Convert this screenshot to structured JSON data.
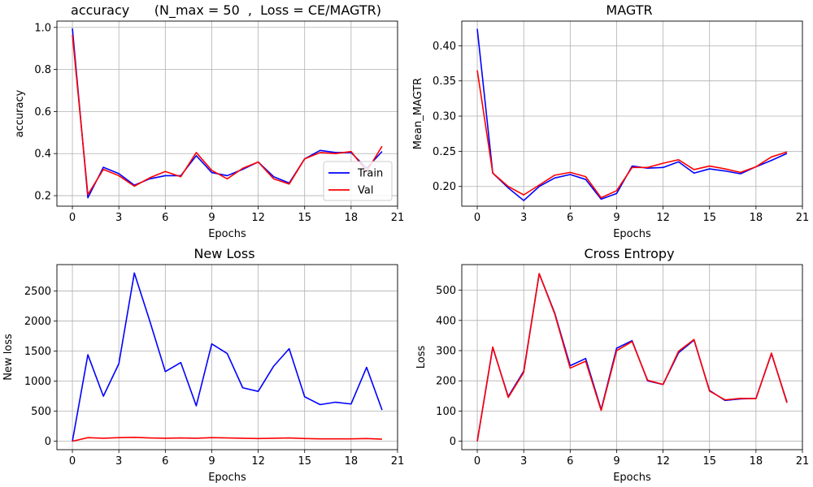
{
  "colors": {
    "train": "#0000ff",
    "val": "#ff0000",
    "grid": "#b0b0b0",
    "axis": "#000000"
  },
  "chart_data": [
    {
      "id": "accuracy",
      "type": "line",
      "title": "accuracy      (N_max = 50  ,  Loss = CE/MAGTR)",
      "xlabel": "Epochs",
      "ylabel": "accuracy",
      "xlim": [
        -1,
        21
      ],
      "ylim": [
        0.15,
        1.03
      ],
      "xticks": [
        "0",
        "3",
        "6",
        "9",
        "12",
        "15",
        "18",
        "21"
      ],
      "yticks": [
        "0.2",
        "0.4",
        "0.6",
        "0.8",
        "1.0"
      ],
      "grid": true,
      "legend": "lower-right",
      "x": [
        0,
        1,
        2,
        3,
        4,
        5,
        6,
        7,
        8,
        9,
        10,
        11,
        12,
        13,
        14,
        15,
        16,
        17,
        18,
        19,
        20
      ],
      "series": [
        {
          "name": "Train",
          "values": [
            0.995,
            0.19,
            0.335,
            0.305,
            0.25,
            0.28,
            0.295,
            0.295,
            0.39,
            0.31,
            0.295,
            0.325,
            0.36,
            0.29,
            0.26,
            0.375,
            0.415,
            0.405,
            0.405,
            0.33,
            0.41
          ]
        },
        {
          "name": "Val",
          "values": [
            0.965,
            0.205,
            0.325,
            0.295,
            0.245,
            0.285,
            0.315,
            0.29,
            0.405,
            0.32,
            0.28,
            0.33,
            0.36,
            0.28,
            0.255,
            0.375,
            0.405,
            0.4,
            0.41,
            0.315,
            0.435
          ]
        }
      ]
    },
    {
      "id": "magtr",
      "type": "line",
      "title": "MAGTR",
      "xlabel": "Epochs",
      "ylabel": "Mean_MAGTR",
      "xlim": [
        -1,
        21
      ],
      "ylim": [
        0.172,
        0.435
      ],
      "xticks": [
        "0",
        "3",
        "6",
        "9",
        "12",
        "15",
        "18",
        "21"
      ],
      "yticks": [
        "0.20",
        "0.25",
        "0.30",
        "0.35",
        "0.40"
      ],
      "grid": true,
      "legend": "none",
      "x": [
        0,
        1,
        2,
        3,
        4,
        5,
        6,
        7,
        8,
        9,
        10,
        11,
        12,
        13,
        14,
        15,
        16,
        17,
        18,
        19,
        20
      ],
      "series": [
        {
          "name": "Train",
          "values": [
            0.424,
            0.219,
            0.198,
            0.18,
            0.2,
            0.212,
            0.217,
            0.21,
            0.182,
            0.19,
            0.229,
            0.226,
            0.227,
            0.235,
            0.219,
            0.225,
            0.222,
            0.218,
            0.228,
            0.237,
            0.247
          ]
        },
        {
          "name": "Val",
          "values": [
            0.365,
            0.219,
            0.2,
            0.188,
            0.202,
            0.216,
            0.22,
            0.214,
            0.184,
            0.194,
            0.227,
            0.227,
            0.233,
            0.238,
            0.224,
            0.229,
            0.225,
            0.22,
            0.228,
            0.242,
            0.249
          ]
        }
      ]
    },
    {
      "id": "newloss",
      "type": "line",
      "title": "New Loss",
      "xlabel": "Epochs",
      "ylabel": "New loss",
      "xlim": [
        -1,
        21
      ],
      "ylim": [
        -140,
        2940
      ],
      "xticks": [
        "0",
        "3",
        "6",
        "9",
        "12",
        "15",
        "18",
        "21"
      ],
      "yticks": [
        "0",
        "500",
        "1000",
        "1500",
        "2000",
        "2500"
      ],
      "grid": true,
      "legend": "none",
      "x": [
        0,
        1,
        2,
        3,
        4,
        5,
        6,
        7,
        8,
        9,
        10,
        11,
        12,
        13,
        14,
        15,
        16,
        17,
        18,
        19,
        20
      ],
      "series": [
        {
          "name": "Train",
          "values": [
            0,
            1440,
            750,
            1290,
            2800,
            2000,
            1160,
            1310,
            590,
            1620,
            1460,
            890,
            830,
            1250,
            1540,
            740,
            610,
            650,
            620,
            1230,
            520
          ]
        },
        {
          "name": "Val",
          "values": [
            0,
            60,
            50,
            60,
            65,
            55,
            50,
            55,
            50,
            60,
            55,
            50,
            45,
            50,
            55,
            45,
            40,
            40,
            40,
            45,
            35
          ]
        }
      ]
    },
    {
      "id": "crossentropy",
      "type": "line",
      "title": "Cross Entropy",
      "xlabel": "Epochs",
      "ylabel": "Loss",
      "xlim": [
        -1,
        21
      ],
      "ylim": [
        -28,
        585
      ],
      "xticks": [
        "0",
        "3",
        "6",
        "9",
        "12",
        "15",
        "18",
        "21"
      ],
      "yticks": [
        "0",
        "100",
        "200",
        "300",
        "400",
        "500"
      ],
      "grid": true,
      "legend": "none",
      "x": [
        0,
        1,
        2,
        3,
        4,
        5,
        6,
        7,
        8,
        9,
        10,
        11,
        12,
        13,
        14,
        15,
        16,
        17,
        18,
        19,
        20
      ],
      "series": [
        {
          "name": "Train",
          "values": [
            0,
            310,
            148,
            232,
            555,
            425,
            250,
            274,
            105,
            308,
            333,
            200,
            188,
            293,
            335,
            168,
            135,
            140,
            142,
            290,
            130
          ]
        },
        {
          "name": "Val",
          "values": [
            0,
            312,
            145,
            228,
            555,
            422,
            242,
            265,
            102,
            300,
            330,
            202,
            188,
            298,
            337,
            166,
            137,
            142,
            141,
            292,
            127
          ]
        }
      ]
    }
  ]
}
